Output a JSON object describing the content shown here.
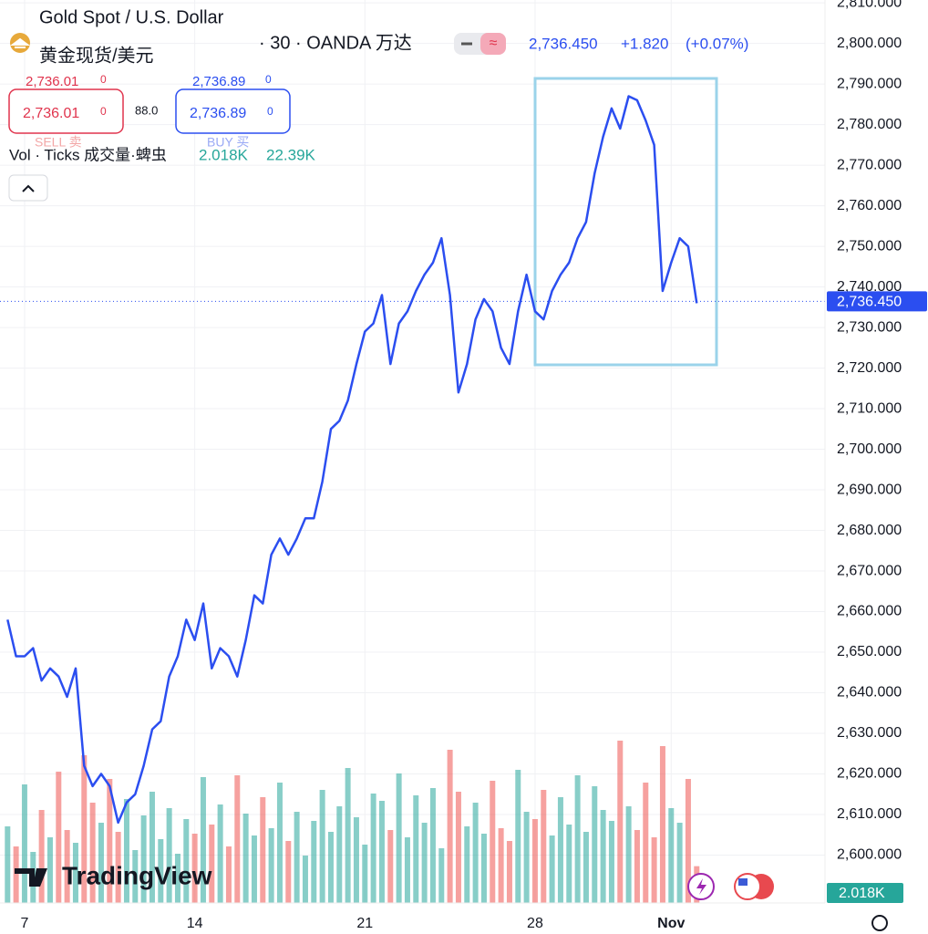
{
  "chart_data": {
    "type": "line",
    "title": "Gold Spot / U.S. Dollar",
    "subtitle": "黄金现货/美元",
    "source": "· 30 · OANDA 万达",
    "change": "+1.820",
    "change_pct": "(+0.07%)",
    "color": "#2b4ef0",
    "categories": [
      null,
      null,
      "7",
      null,
      null,
      null,
      null,
      null,
      null,
      null,
      null,
      null,
      null,
      null,
      null,
      null,
      null,
      null,
      null,
      null,
      null,
      null,
      "14",
      null,
      null,
      null,
      null,
      null,
      null,
      null,
      null,
      null,
      null,
      null,
      null,
      null,
      null,
      null,
      null,
      null,
      null,
      null,
      "21",
      null,
      null,
      null,
      null,
      null,
      null,
      null,
      null,
      null,
      null,
      null,
      null,
      null,
      null,
      null,
      null,
      null,
      null,
      null,
      "28",
      null,
      null,
      null,
      null,
      null,
      null,
      null,
      null,
      null,
      null,
      null,
      null,
      null,
      null,
      null,
      "Nov",
      null,
      null,
      null
    ],
    "values": [
      2658,
      2649,
      2649,
      2651,
      2643,
      2646,
      2644,
      2639,
      2646,
      2622,
      2617,
      2620,
      2617,
      2608,
      2613,
      2615,
      2622,
      2631,
      2633,
      2644,
      2649,
      2658,
      2653,
      2662,
      2646,
      2651,
      2649,
      2644,
      2653,
      2664,
      2662,
      2674,
      2678,
      2674,
      2678,
      2683,
      2683,
      2692,
      2705,
      2707,
      2712,
      2721,
      2729,
      2731,
      2738,
      2721,
      2731,
      2734,
      2739,
      2743,
      2746,
      2752,
      2738,
      2714,
      2721,
      2732,
      2737,
      2734,
      2725,
      2721,
      2734,
      2743,
      2734,
      2732,
      2739,
      2743,
      2746,
      2752,
      2756,
      2768,
      2777,
      2784,
      2779,
      2787,
      2786,
      2781,
      2775,
      2739,
      2746,
      2752,
      2750,
      2736
    ],
    "last_price": {
      "value": 2736.45,
      "label": "2,736.450"
    },
    "ylim": [
      2588.2,
      2810.7
    ],
    "yticks": [
      {
        "value": 2600,
        "label": "2,600.000"
      },
      {
        "value": 2610,
        "label": "2,610.000"
      },
      {
        "value": 2620,
        "label": "2,620.000"
      },
      {
        "value": 2630,
        "label": "2,630.000"
      },
      {
        "value": 2640,
        "label": "2,640.000"
      },
      {
        "value": 2650,
        "label": "2,650.000"
      },
      {
        "value": 2660,
        "label": "2,660.000"
      },
      {
        "value": 2670,
        "label": "2,670.000"
      },
      {
        "value": 2680,
        "label": "2,680.000"
      },
      {
        "value": 2690,
        "label": "2,690.000"
      },
      {
        "value": 2700,
        "label": "2,700.000"
      },
      {
        "value": 2710,
        "label": "2,710.000"
      },
      {
        "value": 2720,
        "label": "2,720.000"
      },
      {
        "value": 2730,
        "label": "2,730.000"
      },
      {
        "value": 2740,
        "label": "2,740.000"
      },
      {
        "value": 2750,
        "label": "2,750.000"
      },
      {
        "value": 2760,
        "label": "2,760.000"
      },
      {
        "value": 2770,
        "label": "2,770.000"
      },
      {
        "value": 2780,
        "label": "2,780.000"
      },
      {
        "value": 2790,
        "label": "2,790.000"
      },
      {
        "value": 2800,
        "label": "2,800.000"
      },
      {
        "value": 2810,
        "label": "2,810.000"
      }
    ],
    "grid": true,
    "volume": {
      "type": "bar",
      "name": "Vol · Ticks 成交量·蜱虫",
      "values": [
        4.2,
        3.1,
        6.5,
        2.8,
        5.1,
        3.6,
        7.2,
        4.0,
        3.3,
        8.1,
        5.5,
        4.4,
        6.8,
        3.9,
        5.7,
        2.9,
        4.8,
        6.1,
        3.5,
        5.2,
        2.7,
        4.6,
        3.8,
        6.9,
        4.3,
        5.4,
        3.1,
        7.0,
        4.9,
        3.7,
        5.8,
        4.1,
        6.6,
        3.4,
        5.0,
        2.6,
        4.5,
        6.2,
        3.9,
        5.3,
        7.4,
        4.7,
        3.2,
        6.0,
        5.6,
        4.0,
        7.1,
        3.6,
        5.9,
        4.4,
        6.3,
        3.0,
        8.4,
        6.1,
        4.2,
        5.5,
        3.8,
        6.7,
        4.1,
        3.4,
        7.3,
        5.0,
        4.6,
        6.2,
        3.7,
        5.8,
        4.3,
        7.0,
        3.9,
        6.4,
        5.1,
        4.5,
        8.9,
        5.3,
        4.0,
        6.6,
        3.6,
        8.6,
        5.2,
        4.4,
        6.8,
        2.018
      ],
      "colors": [
        "#26a69a",
        "#ef5350"
      ],
      "last_label": "2.018K",
      "total_label": "22.39K"
    },
    "sell": {
      "price": "2,736.01",
      "tail": "0",
      "label": "SELL 卖"
    },
    "buy": {
      "price": "2,736.89",
      "tail": "0",
      "label": "BUY 买"
    },
    "spread": "88.0",
    "branding": "TradingView"
  }
}
